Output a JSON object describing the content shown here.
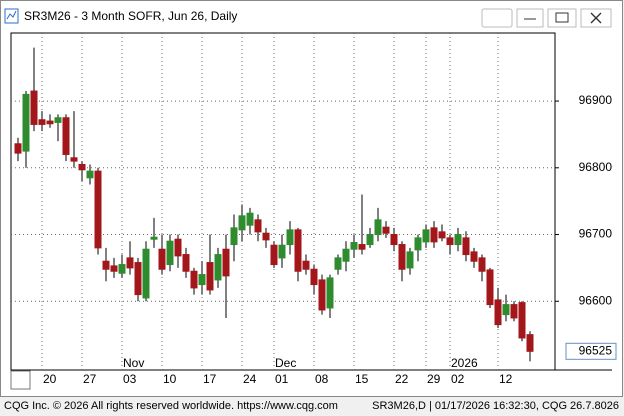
{
  "window": {
    "title": "SR3M26 - 3 Month SOFR, Jun 26, Daily"
  },
  "chart_data": {
    "type": "candlestick",
    "categories": [
      null,
      null,
      null,
      "20",
      null,
      null,
      null,
      null,
      "27",
      null,
      null,
      null,
      null,
      "03",
      null,
      null,
      null,
      null,
      "10",
      null,
      null,
      null,
      null,
      "17",
      null,
      null,
      null,
      null,
      "24",
      null,
      null,
      null,
      "01",
      null,
      null,
      null,
      null,
      "08",
      null,
      null,
      null,
      null,
      "15",
      null,
      null,
      null,
      null,
      "22",
      null,
      null,
      null,
      "29",
      null,
      null,
      "02",
      null,
      null,
      null,
      null,
      null,
      "12",
      null,
      null,
      null,
      null
    ],
    "open": [
      96836,
      96825,
      96915,
      96872,
      96870,
      96868,
      96875,
      96815,
      96805,
      96785,
      96795,
      96660,
      96653,
      96642,
      96665,
      96658,
      96605,
      96693,
      96678,
      96655,
      96693,
      96670,
      96645,
      96625,
      96658,
      96632,
      96678,
      96685,
      96707,
      96714,
      96722,
      96702,
      96684,
      96665,
      96685,
      96707,
      96660,
      96648,
      96632,
      96590,
      96648,
      96660,
      96678,
      96685,
      96685,
      96700,
      96711,
      96700,
      96685,
      96650,
      96677,
      96689,
      96710,
      96704,
      96695,
      96685,
      96695,
      96674,
      96665,
      96647,
      96602,
      96580,
      96595,
      96598,
      96550
    ],
    "high": [
      96845,
      96915,
      96980,
      96885,
      96880,
      96880,
      96880,
      96885,
      96810,
      96805,
      96800,
      96680,
      96665,
      96670,
      96690,
      96665,
      96690,
      96725,
      96700,
      96700,
      96700,
      96680,
      96650,
      96660,
      96700,
      96680,
      96700,
      96730,
      96745,
      96740,
      96730,
      96710,
      96690,
      96700,
      96720,
      96710,
      96670,
      96655,
      96640,
      96640,
      96670,
      96690,
      96700,
      96760,
      96710,
      96740,
      96720,
      96710,
      96690,
      96680,
      96700,
      96715,
      96720,
      96715,
      96700,
      96710,
      96705,
      96680,
      96670,
      96650,
      96620,
      96610,
      96600,
      96600,
      96555
    ],
    "low": [
      96810,
      96800,
      96855,
      96855,
      96860,
      96840,
      96810,
      96800,
      96780,
      96775,
      96670,
      96630,
      96635,
      96635,
      96640,
      96600,
      96600,
      96680,
      96640,
      96645,
      96650,
      96635,
      96610,
      96610,
      96610,
      96620,
      96575,
      96660,
      96690,
      96700,
      96690,
      96680,
      96650,
      96650,
      96670,
      96630,
      96640,
      96610,
      96580,
      96575,
      96640,
      96645,
      96665,
      96670,
      96680,
      96690,
      96695,
      96675,
      96630,
      96640,
      96660,
      96680,
      96680,
      96690,
      96670,
      96675,
      96660,
      96650,
      96630,
      96590,
      96560,
      96570,
      96570,
      96540,
      96510
    ],
    "close": [
      96822,
      96910,
      96865,
      96865,
      96866,
      96875,
      96820,
      96810,
      96797,
      96795,
      96680,
      96648,
      96645,
      96655,
      96650,
      96610,
      96678,
      96696,
      96648,
      96690,
      96668,
      96645,
      96620,
      96640,
      96617,
      96670,
      96638,
      96710,
      96728,
      96732,
      96704,
      96692,
      96655,
      96684,
      96707,
      96645,
      96648,
      96625,
      96587,
      96635,
      96665,
      96678,
      96688,
      96678,
      96700,
      96722,
      96702,
      96685,
      96648,
      96674,
      96695,
      96707,
      96689,
      96695,
      96685,
      96700,
      96670,
      96660,
      96645,
      96595,
      96565,
      96595,
      96575,
      96545,
      96525
    ],
    "month_labels": [
      {
        "label": "Nov",
        "index": 13
      },
      {
        "label": "Dec",
        "index": 32
      },
      {
        "label": "2026",
        "index": 54
      }
    ],
    "ylim": [
      96497,
      97002
    ],
    "yticks": [
      96900,
      96800,
      96700,
      96600
    ],
    "last_price": 96525,
    "grid": true,
    "up_color": "#2e8b2e",
    "down_color": "#a3161a",
    "wick_color": "#000000"
  },
  "footer": {
    "left": "CQG Inc. © 2026 All rights reserved worldwide. https://www.cqg.com",
    "right": "SR3M26,D | 01/17/2026 16:32:30, CQG 26.7.8026"
  }
}
